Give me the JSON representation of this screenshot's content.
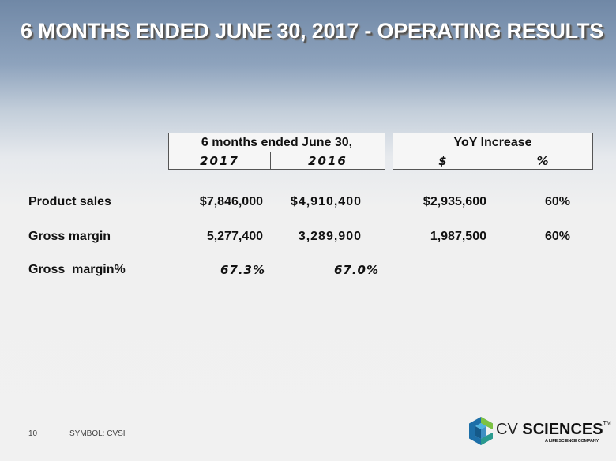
{
  "title": "6 MONTHS ENDED JUNE 30, 2017 - OPERATING RESULTS",
  "table": {
    "period_header": "6 months ended June 30,",
    "years": [
      "2017",
      "2016"
    ],
    "yoy_header": "YoY Increase",
    "yoy_cols": [
      "$",
      "%"
    ],
    "rows": [
      {
        "label": "Product sales",
        "v2017": "$7,846,000",
        "v2016": "$4,910,400",
        "yoy_dollar": "$2,935,600",
        "yoy_pct": "60%"
      },
      {
        "label": "Gross margin",
        "v2017": "5,277,400",
        "v2016": "3,289,900",
        "yoy_dollar": "1,987,500",
        "yoy_pct": "60%"
      },
      {
        "label": "Gross  margin%",
        "v2017": "67.3%",
        "v2016": "67.0%"
      }
    ]
  },
  "footer": {
    "page": "10",
    "symbol": "SYMBOL: CVSI"
  },
  "logo": {
    "cv": "CV",
    "sciences": "SCIENCES",
    "tm": "TM",
    "tagline": "A LIFE SCIENCE COMPANY"
  },
  "colors": {
    "accent_blue": "#1d6fa8",
    "accent_green": "#7cc242"
  }
}
